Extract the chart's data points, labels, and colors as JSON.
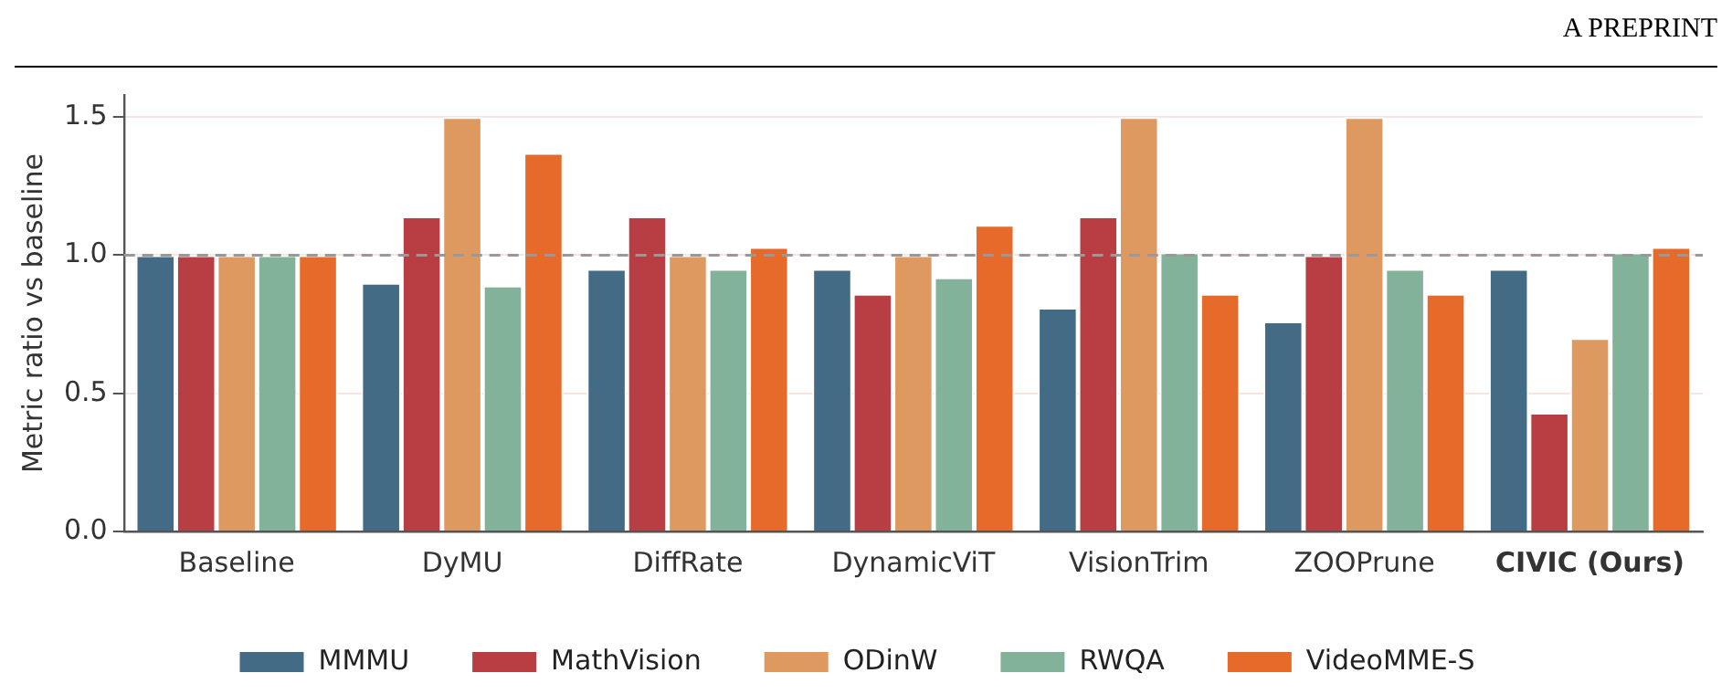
{
  "chart_data": {
    "type": "bar",
    "ylabel": "Metric ratio vs baseline",
    "annotations": [
      "A PREPRINT"
    ],
    "categories": [
      "Baseline",
      "DyMU",
      "DiffRate",
      "DynamicViT",
      "VisionTrim",
      "ZOOPrune",
      "CIVIC (Ours)"
    ],
    "series": [
      {
        "name": "MMMU",
        "color": "#436b86",
        "values": [
          1.0,
          0.9,
          0.95,
          0.95,
          0.81,
          0.76,
          0.95
        ]
      },
      {
        "name": "MathVision",
        "color": "#b83e44",
        "values": [
          1.0,
          1.14,
          1.14,
          0.86,
          1.14,
          1.0,
          0.43
        ]
      },
      {
        "name": "ODinW",
        "color": "#de9960",
        "values": [
          1.0,
          1.5,
          1.0,
          1.0,
          1.5,
          1.5,
          0.7
        ]
      },
      {
        "name": "RWQA",
        "color": "#83b29b",
        "values": [
          1.0,
          0.89,
          0.95,
          0.92,
          1.01,
          0.95,
          1.01
        ]
      },
      {
        "name": "VideoMME-S",
        "color": "#e66a2a",
        "values": [
          1.0,
          1.37,
          1.03,
          1.11,
          0.86,
          0.86,
          1.03
        ]
      }
    ],
    "ylim": [
      0,
      1.58
    ],
    "yticks": [
      {
        "value": 0,
        "label": "0.0"
      },
      {
        "value": 0.5,
        "label": "0.5"
      },
      {
        "value": 1,
        "label": "1.0"
      },
      {
        "value": 1.5,
        "label": "1.5"
      }
    ],
    "grid": "y",
    "legend": "bottom",
    "ref_lines": [
      {
        "axis": "y",
        "value": 1,
        "color": "#999999",
        "line_style": "dashed"
      }
    ]
  }
}
